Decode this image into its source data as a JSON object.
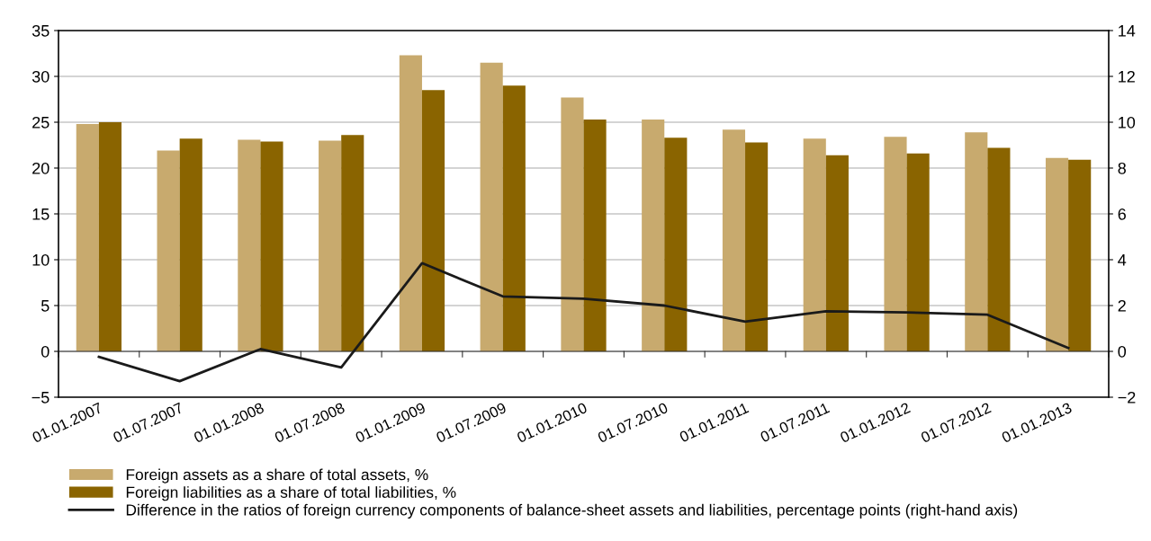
{
  "chart_data": {
    "type": "bar",
    "categories": [
      "01.01.2007",
      "01.07.2007",
      "01.01.2008",
      "01.07.2008",
      "01.01.2009",
      "01.07.2009",
      "01.01.2010",
      "01.07.2010",
      "01.01.2011",
      "01.07.2011",
      "01.01.2012",
      "01.07.2012",
      "01.01.2013"
    ],
    "series": [
      {
        "name": "Foreign assets as a share of total assets, %",
        "color": "#c8aa6e",
        "values": [
          24.8,
          21.9,
          23.1,
          23.0,
          32.3,
          31.5,
          27.7,
          25.3,
          24.2,
          23.2,
          23.4,
          23.9,
          21.1
        ]
      },
      {
        "name": "Foreign liabilities as a share of total liabilities, %",
        "color": "#8a6400",
        "values": [
          25.0,
          23.2,
          22.9,
          23.6,
          28.5,
          29.0,
          25.3,
          23.3,
          22.8,
          21.4,
          21.6,
          22.2,
          20.9
        ]
      },
      {
        "name": "Difference in the ratios of foreign currency components of balance-sheet assets and liabilities, percentage points (right-hand axis)",
        "type": "line",
        "axis": "y2",
        "color": "#1a1a1a",
        "values": [
          -0.24,
          -1.3,
          0.1,
          -0.7,
          3.85,
          2.4,
          2.3,
          2.0,
          1.3,
          1.75,
          1.7,
          1.6,
          0.15
        ]
      }
    ],
    "ylim": [
      -5,
      35
    ],
    "yticks": [
      -5,
      0,
      5,
      10,
      15,
      20,
      25,
      30,
      35
    ],
    "y2lim": [
      -2,
      14
    ],
    "y2ticks": [
      -2,
      0,
      2,
      4,
      6,
      8,
      10,
      12,
      14
    ],
    "grid": "y",
    "legend": "bottom"
  }
}
